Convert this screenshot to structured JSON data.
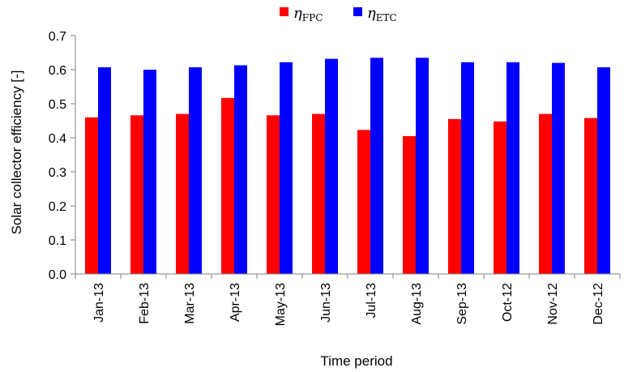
{
  "chart_data": {
    "type": "bar",
    "categories": [
      "Jan-13",
      "Feb-13",
      "Mar-13",
      "Apr-13",
      "May-13",
      "Jun-13",
      "Jul-13",
      "Aug-13",
      "Sep-13",
      "Oct-12",
      "Nov-12",
      "Dec-12"
    ],
    "series": [
      {
        "name": "ηFPC",
        "symbol": "η",
        "subscript": "FPC",
        "color": "#ff0000",
        "values": [
          0.46,
          0.466,
          0.47,
          0.517,
          0.466,
          0.47,
          0.423,
          0.405,
          0.455,
          0.448,
          0.47,
          0.458
        ]
      },
      {
        "name": "ηETC",
        "symbol": "η",
        "subscript": "ETC",
        "color": "#0000ff",
        "values": [
          0.607,
          0.6,
          0.607,
          0.613,
          0.622,
          0.632,
          0.635,
          0.635,
          0.622,
          0.622,
          0.62,
          0.607
        ]
      }
    ],
    "xlabel": "Time period",
    "ylabel": "Solar collector efficiency  [-]",
    "ylim": [
      0,
      0.7
    ],
    "yticks": [
      "0.0",
      "0.1",
      "0.2",
      "0.3",
      "0.4",
      "0.5",
      "0.6",
      "0.7"
    ],
    "grid": false,
    "legend_position": "top-center"
  }
}
